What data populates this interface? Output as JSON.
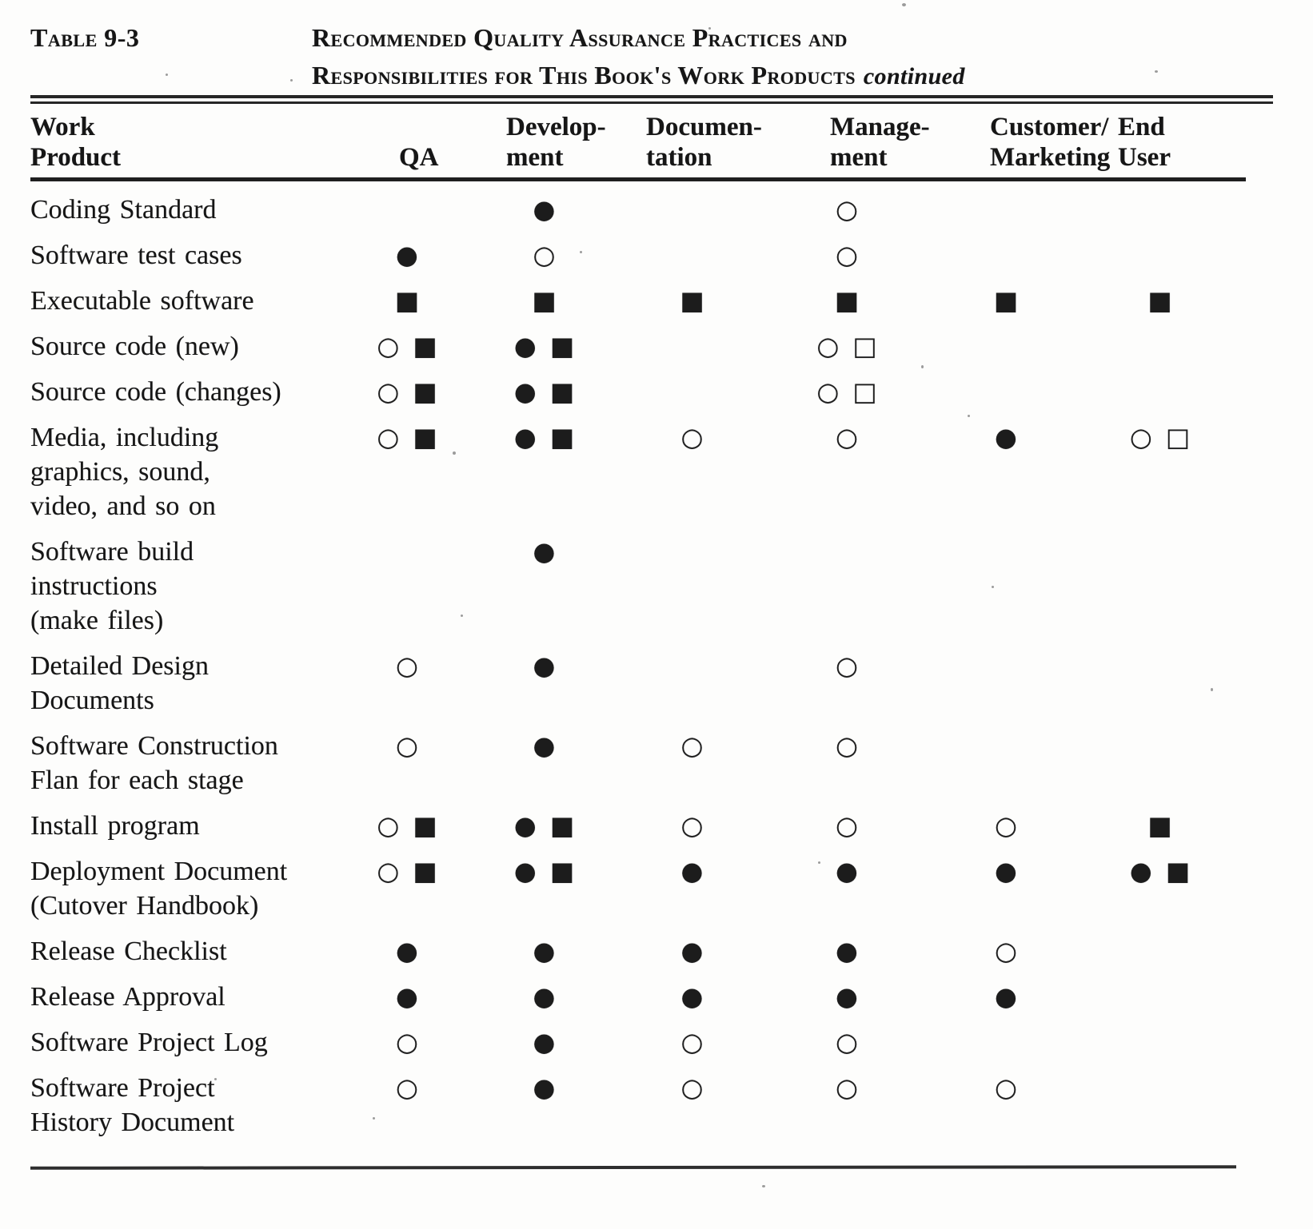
{
  "header": {
    "table_label": "Table 9-3",
    "title_line1": "Recommended Quality Assurance Practices and",
    "title_line2": "Responsibilities for This Book's Work Products",
    "continued_note": "continued"
  },
  "symbols": {
    "filled_circle": "●",
    "open_circle": "○",
    "filled_square": "■",
    "open_square": "□"
  },
  "colors": {
    "ink": "#161616",
    "paper": "#fdfdfc",
    "rule": "#262626"
  },
  "table": {
    "columns": [
      "Work\nProduct",
      "QA",
      "Develop-\nment",
      "Documen-\ntation",
      "Manage-\nment",
      "Customer/\nMarketing",
      "End\nUser"
    ],
    "rows": [
      {
        "label": "Coding Standard",
        "cells": [
          "",
          "●",
          "",
          "○",
          "",
          ""
        ]
      },
      {
        "label": "Software test cases",
        "cells": [
          "●",
          "○",
          "",
          "○",
          "",
          ""
        ]
      },
      {
        "label": "Executable software",
        "cells": [
          "■",
          "■",
          "■",
          "■",
          "■",
          "■"
        ]
      },
      {
        "label": "Source code (new)",
        "cells": [
          "○ ■",
          "● ■",
          "",
          "○ □",
          "",
          ""
        ]
      },
      {
        "label": "Source code (changes)",
        "cells": [
          "○ ■",
          "● ■",
          "",
          "○ □",
          "",
          ""
        ]
      },
      {
        "label": "Media, including\ngraphics, sound,\nvideo, and so on",
        "cells": [
          "○ ■",
          "● ■",
          "○",
          "○",
          "●",
          "○ □"
        ]
      },
      {
        "label": "Software build\ninstructions\n(make files)",
        "cells": [
          "",
          "●",
          "",
          "",
          "",
          ""
        ]
      },
      {
        "label": "Detailed Design\nDocuments",
        "cells": [
          "○",
          "●",
          "",
          "○",
          "",
          ""
        ]
      },
      {
        "label": "Software Construction\nFlan for each stage",
        "cells": [
          "○",
          "●",
          "○",
          "○",
          "",
          ""
        ]
      },
      {
        "label": "Install program",
        "cells": [
          "○ ■",
          "● ■",
          "○",
          "○",
          "○",
          "■"
        ]
      },
      {
        "label": "Deployment Document\n(Cutover Handbook)",
        "cells": [
          "○ ■",
          "● ■",
          "●",
          "●",
          "●",
          "● ■"
        ]
      },
      {
        "label": "Release Checklist",
        "cells": [
          "●",
          "●",
          "●",
          "●",
          "○",
          ""
        ]
      },
      {
        "label": "Release Approval",
        "cells": [
          "●",
          "●",
          "●",
          "●",
          "●",
          ""
        ]
      },
      {
        "label": "Software Project Log",
        "cells": [
          "○",
          "●",
          "○",
          "○",
          "",
          ""
        ]
      },
      {
        "label": "Software Project\nHistory Document",
        "cells": [
          "○",
          "●",
          "○",
          "○",
          "○",
          ""
        ]
      }
    ]
  }
}
